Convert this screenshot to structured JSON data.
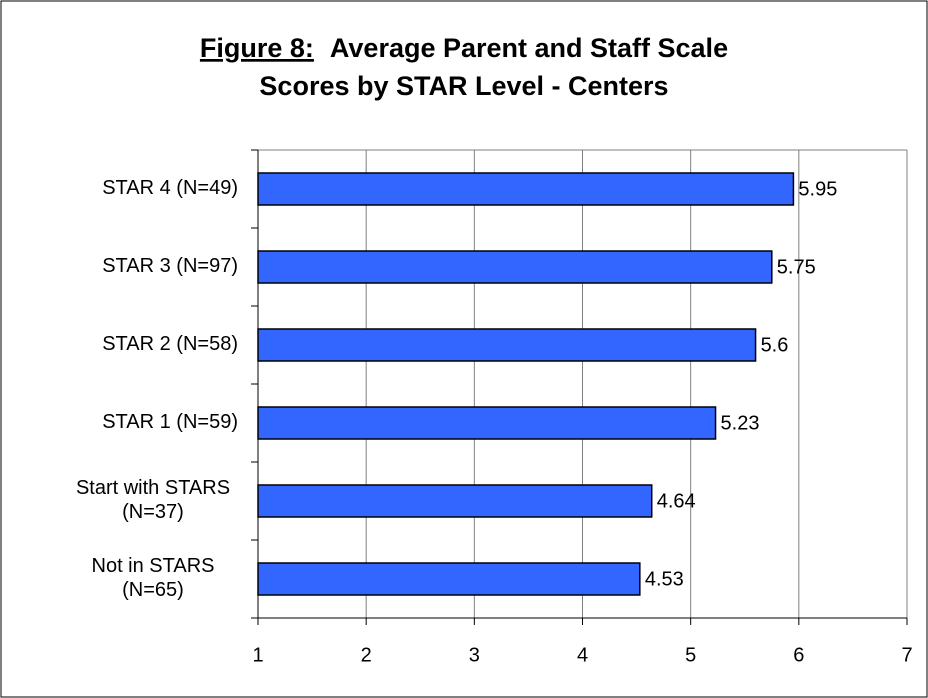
{
  "chart_data": {
    "type": "bar",
    "orientation": "horizontal",
    "title_prefix": "Figure 8:",
    "title_lines": [
      "Average Parent and Staff Scale",
      "Scores by STAR Level - Centers"
    ],
    "categories": [
      [
        "STAR 4 (N=49)"
      ],
      [
        "STAR 3 (N=97)"
      ],
      [
        "STAR 2 (N=58)"
      ],
      [
        "STAR 1 (N=59)"
      ],
      [
        "Start with STARS",
        "(N=37)"
      ],
      [
        "Not in STARS",
        "(N=65)"
      ]
    ],
    "values": [
      5.95,
      5.75,
      5.6,
      5.23,
      4.64,
      4.53
    ],
    "color": "#3366FF",
    "xlim": [
      1,
      7
    ],
    "xticks": [
      1,
      2,
      3,
      4,
      5,
      6,
      7
    ],
    "grid": true
  }
}
